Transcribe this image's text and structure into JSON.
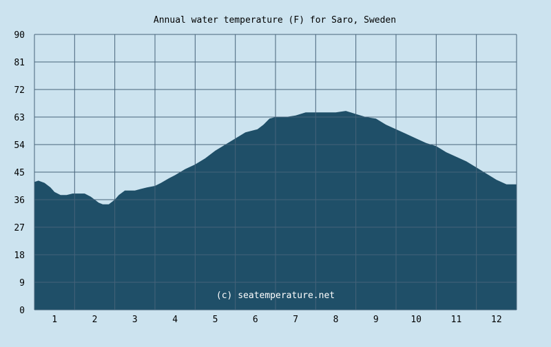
{
  "chart_data": {
    "type": "area",
    "title": "Annual water temperature (F) for Saro, Sweden",
    "xlabel": "",
    "ylabel": "",
    "ylim": [
      0,
      90
    ],
    "xlim": [
      0.5,
      12.5
    ],
    "y_ticks": [
      "0",
      "9",
      "18",
      "27",
      "36",
      "45",
      "54",
      "63",
      "72",
      "81",
      "90"
    ],
    "x_ticks": [
      "1",
      "2",
      "3",
      "4",
      "5",
      "6",
      "7",
      "8",
      "9",
      "10",
      "11",
      "12"
    ],
    "grid": true,
    "legend": "none",
    "colors": {
      "background": "#cce3ef",
      "fill": "#1f4f68",
      "grid": "#46637a",
      "text": "#000000",
      "watermark": "#ffffff"
    },
    "series": [
      {
        "x": [
          0.5,
          0.6,
          0.75,
          0.9,
          1.0,
          1.15,
          1.3,
          1.45,
          1.6,
          1.75,
          1.9,
          2.0,
          2.1,
          2.2,
          2.35,
          2.5,
          2.6,
          2.75,
          2.85,
          3.0,
          3.15,
          3.3,
          3.5,
          3.65,
          3.85,
          4.0,
          4.25,
          4.5,
          4.75,
          5.0,
          5.25,
          5.5,
          5.75,
          5.9,
          6.05,
          6.2,
          6.35,
          6.5,
          6.75,
          7.0,
          7.25,
          7.5,
          7.75,
          8.0,
          8.25,
          8.5,
          8.75,
          9.0,
          9.25,
          9.5,
          9.75,
          10.0,
          10.25,
          10.5,
          10.75,
          11.0,
          11.25,
          11.5,
          11.75,
          12.0,
          12.25,
          12.5
        ],
        "values": [
          41.8,
          42.2,
          41.5,
          40.0,
          38.5,
          37.5,
          37.5,
          38.0,
          38.0,
          38.0,
          37.0,
          36.0,
          35.0,
          34.5,
          34.5,
          36.0,
          37.5,
          39.0,
          39.0,
          39.0,
          39.5,
          40.0,
          40.5,
          41.5,
          43.0,
          44.0,
          46.0,
          47.5,
          49.5,
          52.0,
          54.0,
          56.0,
          58.0,
          58.5,
          59.0,
          60.5,
          62.5,
          63.0,
          63.0,
          63.5,
          64.5,
          64.5,
          64.5,
          64.5,
          65.0,
          64.0,
          63.0,
          62.5,
          60.5,
          59.0,
          57.5,
          56.0,
          54.5,
          53.5,
          51.5,
          50.0,
          48.5,
          46.5,
          44.5,
          42.5,
          41.0,
          41.0
        ]
      }
    ],
    "watermark": "(c) seatemperature.net"
  }
}
